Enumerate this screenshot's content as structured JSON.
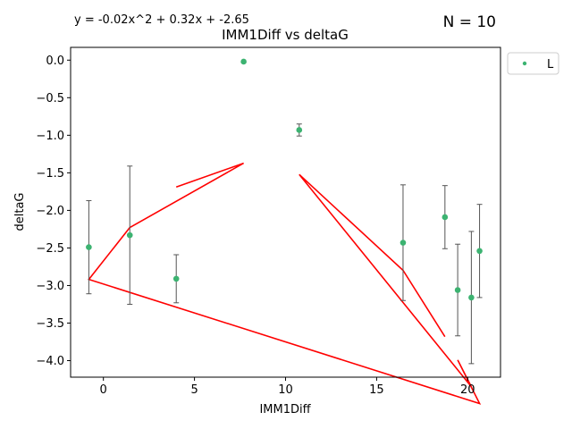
{
  "chart_data": {
    "type": "scatter",
    "title": "IMM1Diff vs deltaG",
    "equation": "y = -0.02x^2 + 0.32x + -2.65",
    "n_label": "N = 10",
    "xlabel": "IMM1Diff",
    "ylabel": "deltaG",
    "xlim": [
      -1.8,
      21.8
    ],
    "ylim": [
      -4.22,
      0.17
    ],
    "xticks": [
      0,
      5,
      10,
      15,
      20
    ],
    "yticks": [
      0.0,
      -0.5,
      -1.0,
      -1.5,
      -2.0,
      -2.5,
      -3.0,
      -3.5,
      -4.0
    ],
    "xtick_labels": [
      "0",
      "5",
      "10",
      "15",
      "20"
    ],
    "ytick_labels": [
      "0.0",
      "−0.5",
      "−1.0",
      "−1.5",
      "−2.0",
      "−2.5",
      "−3.0",
      "−3.5",
      "−4.0"
    ],
    "legend": {
      "label": "L",
      "placement": "outside-top-right"
    },
    "point_color": "#3cb371",
    "fit_color": "#ff0000",
    "errorbar_color": "#555555",
    "points": [
      {
        "x": -0.8,
        "y": -2.49,
        "err": 0.62
      },
      {
        "x": 1.45,
        "y": -2.33,
        "err": 0.92
      },
      {
        "x": 4.0,
        "y": -2.91,
        "err": 0.32
      },
      {
        "x": 7.7,
        "y": -0.02,
        "err": 0.0
      },
      {
        "x": 10.75,
        "y": -0.93,
        "err": 0.08
      },
      {
        "x": 16.45,
        "y": -2.43,
        "err": 0.77
      },
      {
        "x": 18.75,
        "y": -2.09,
        "err": 0.42
      },
      {
        "x": 19.45,
        "y": -3.06,
        "err": 0.61
      },
      {
        "x": 20.2,
        "y": -3.16,
        "err": 0.88
      },
      {
        "x": 20.65,
        "y": -2.54,
        "err": 0.62
      }
    ],
    "fit_x_order": [
      4.0,
      7.7,
      1.45,
      -0.8,
      20.65,
      19.45,
      20.2,
      10.75,
      16.45,
      18.75
    ]
  }
}
